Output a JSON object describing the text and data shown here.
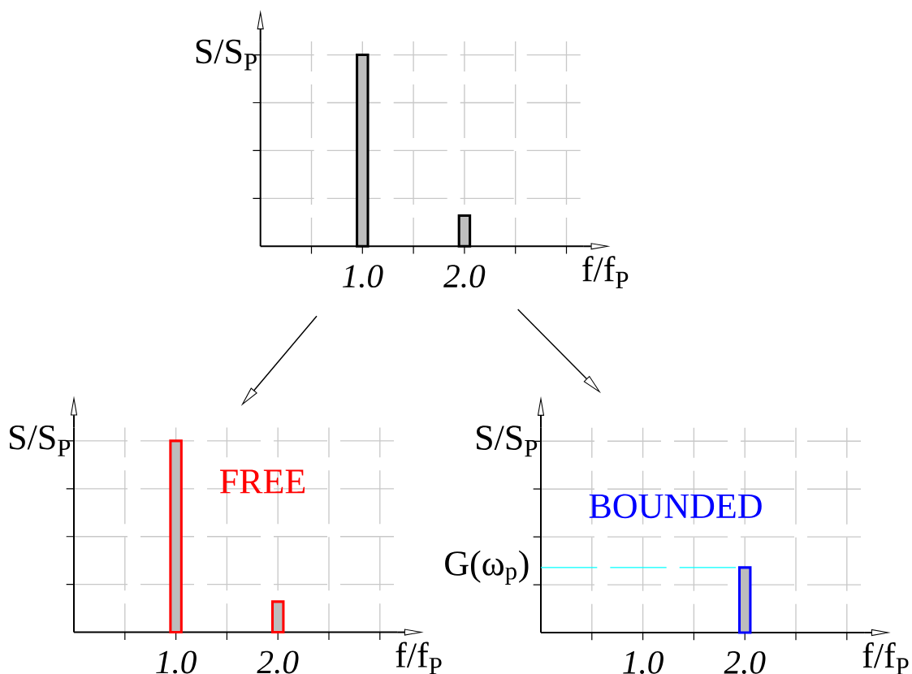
{
  "chart_data": [
    {
      "type": "bar",
      "categories": [
        null,
        "1.0",
        null,
        "2.0",
        null,
        null
      ],
      "series": [
        {
          "color": "#000000",
          "values": [
            null,
            1,
            null,
            0.16,
            null,
            null
          ]
        }
      ],
      "xlabel": "f/f$_{P}$",
      "ylim": [
        0,
        1.07
      ],
      "yticks": [
        {
          "value": 0.25,
          "label": null
        },
        {
          "value": 0.5,
          "label": null
        },
        {
          "value": 0.75,
          "label": null
        },
        {
          "value": 1,
          "label": "S/S$_{P}$"
        }
      ],
      "grid": true
    },
    {
      "type": "bar",
      "categories": [
        null,
        "1.0",
        null,
        "2.0",
        null,
        null
      ],
      "series": [
        {
          "color": "#ff0000",
          "values": [
            null,
            1,
            null,
            0.16,
            null,
            null
          ]
        }
      ],
      "xlabel": "f/f$_{P}$",
      "ylim": [
        0,
        1.07
      ],
      "yticks": [
        {
          "value": 0.25,
          "label": null
        },
        {
          "value": 0.5,
          "label": null
        },
        {
          "value": 0.75,
          "label": null
        },
        {
          "value": 1,
          "label": "S/S$_{P}$"
        }
      ],
      "grid": true,
      "annotations": [
        "FREE"
      ]
    },
    {
      "type": "bar",
      "categories": [
        null,
        "1.0",
        null,
        "2.0",
        null,
        null
      ],
      "series": [
        {
          "color": "#0000ff",
          "values": [
            null,
            null,
            null,
            0.34,
            null,
            null
          ]
        }
      ],
      "xlabel": "f/f$_{P}$",
      "ylim": [
        0,
        1.07
      ],
      "yticks": [
        {
          "value": 0.25,
          "label": null
        },
        {
          "value": 0.5,
          "label": null
        },
        {
          "value": 0.75,
          "label": null
        },
        {
          "value": 1,
          "label": "S/S$_{P}$"
        }
      ],
      "grid": true,
      "annotations": [
        "BOUNDED"
      ],
      "ref_lines": [
        {
          "axis": "y",
          "value": 0.34,
          "label": "G(ω$_{p}$)",
          "color": "#00ffff",
          "line_style": "dashed"
        }
      ]
    }
  ]
}
